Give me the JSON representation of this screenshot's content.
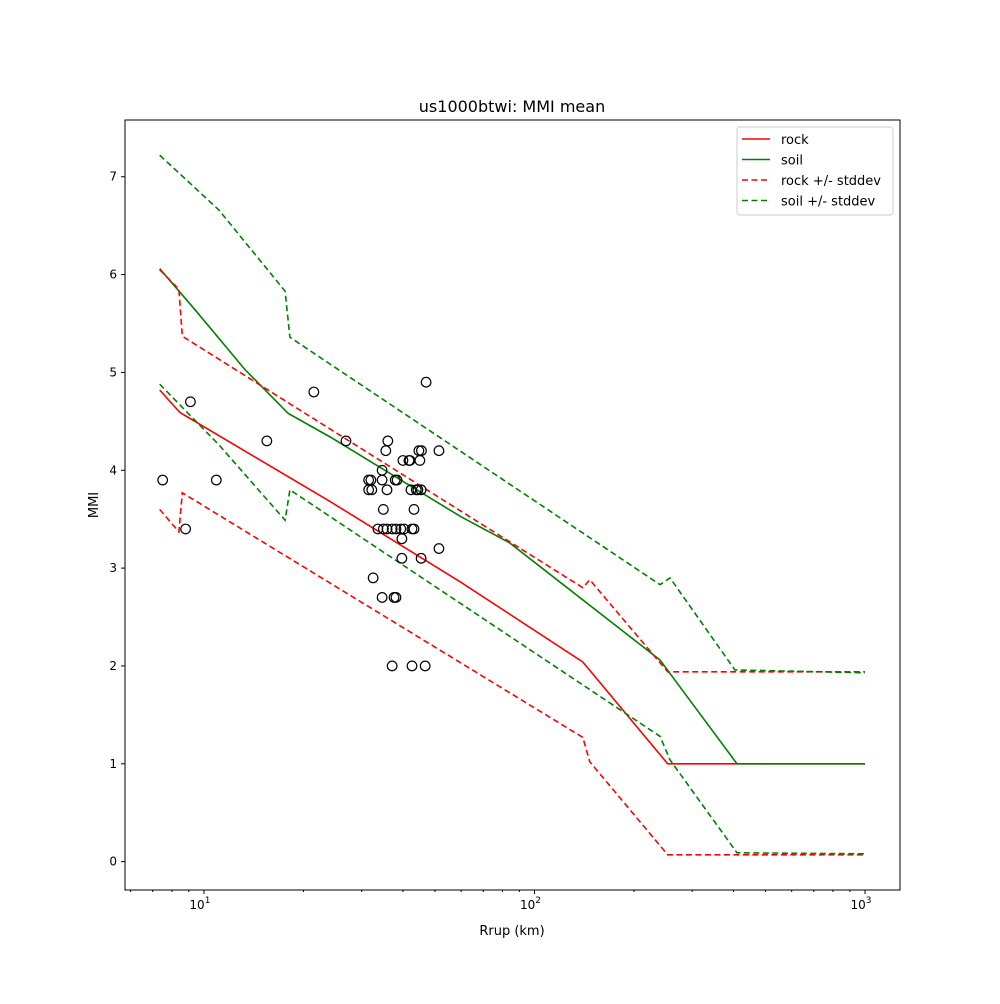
{
  "chart_data": {
    "type": "line",
    "title": "us1000btwi: MMI mean",
    "xlabel": "Rrup (km)",
    "ylabel": "MMI",
    "xscale": "log",
    "xlim": [
      5.77,
      1276
    ],
    "ylim": [
      -0.29,
      7.58
    ],
    "xticks": [
      {
        "v": 10,
        "base": "10",
        "exp": "1"
      },
      {
        "v": 100,
        "base": "10",
        "exp": "2"
      },
      {
        "v": 1000,
        "base": "10",
        "exp": "3"
      }
    ],
    "yticks": [
      "0",
      "1",
      "2",
      "3",
      "4",
      "5",
      "6",
      "7"
    ],
    "legend_position": "top-right",
    "series": [
      {
        "name": "rock",
        "color": "#ff0000",
        "style": "solid",
        "points": [
          [
            7.35,
            4.82
          ],
          [
            8.46,
            4.59
          ],
          [
            24.1,
            3.68
          ],
          [
            59.6,
            2.86
          ],
          [
            140,
            2.04
          ],
          [
            253,
            1.0
          ],
          [
            1000,
            1.0
          ]
        ]
      },
      {
        "name": "soil",
        "color": "#008000",
        "style": "solid",
        "points": [
          [
            7.35,
            6.06
          ],
          [
            9.4,
            5.64
          ],
          [
            13.3,
            5.03
          ],
          [
            18,
            4.58
          ],
          [
            24.1,
            4.34
          ],
          [
            59.6,
            3.53
          ],
          [
            84,
            3.26
          ],
          [
            240,
            2.06
          ],
          [
            295,
            1.65
          ],
          [
            410,
            1.0
          ],
          [
            1000,
            1.0
          ]
        ]
      },
      {
        "name": "rock +/- stddev",
        "color": "#ff0000",
        "style": "dashed",
        "points": [
          [
            7.35,
            6.05
          ],
          [
            8.4,
            5.85
          ],
          [
            8.6,
            5.37
          ],
          [
            140,
            2.8
          ],
          [
            147,
            2.88
          ],
          [
            253,
            1.94
          ],
          [
            1000,
            1.94
          ]
        ]
      },
      {
        "name": "rock +/- stddev (lower)",
        "legend": false,
        "color": "#ff0000",
        "style": "dashed",
        "points": [
          [
            7.35,
            3.6
          ],
          [
            8.4,
            3.37
          ],
          [
            8.6,
            3.77
          ],
          [
            140,
            1.27
          ],
          [
            147,
            1.02
          ],
          [
            253,
            0.07
          ],
          [
            1000,
            0.07
          ]
        ]
      },
      {
        "name": "soil +/- stddev",
        "color": "#008000",
        "style": "dashed",
        "points": [
          [
            7.35,
            7.22
          ],
          [
            11.1,
            6.66
          ],
          [
            17.6,
            5.83
          ],
          [
            18.2,
            5.36
          ],
          [
            240,
            2.83
          ],
          [
            257,
            2.9
          ],
          [
            404,
            1.96
          ],
          [
            1000,
            1.93
          ]
        ]
      },
      {
        "name": "soil +/- stddev (lower)",
        "legend": false,
        "color": "#008000",
        "style": "dashed",
        "points": [
          [
            7.35,
            4.88
          ],
          [
            11.1,
            4.26
          ],
          [
            17.6,
            3.49
          ],
          [
            18.2,
            3.8
          ],
          [
            240,
            1.28
          ],
          [
            257,
            1.04
          ],
          [
            410,
            0.09
          ],
          [
            1000,
            0.08
          ]
        ]
      }
    ],
    "legend": [
      "rock",
      "soil",
      "rock +/- stddev",
      "soil +/- stddev"
    ],
    "scatter": [
      [
        7.5,
        3.9
      ],
      [
        8.8,
        3.4
      ],
      [
        9.1,
        4.7
      ],
      [
        10.9,
        3.9
      ],
      [
        15.5,
        4.3
      ],
      [
        21.5,
        4.8
      ],
      [
        26.9,
        4.3
      ],
      [
        47,
        4.9
      ],
      [
        36,
        4.3
      ],
      [
        35.5,
        4.2
      ],
      [
        44.7,
        4.2
      ],
      [
        45.5,
        4.2
      ],
      [
        51.4,
        4.2
      ],
      [
        40,
        4.1
      ],
      [
        41.7,
        4.1
      ],
      [
        42,
        4.1
      ],
      [
        45,
        4.1
      ],
      [
        34.6,
        4.0
      ],
      [
        31.5,
        3.9
      ],
      [
        32,
        3.9
      ],
      [
        34.6,
        3.9
      ],
      [
        37.9,
        3.9
      ],
      [
        38.4,
        3.9
      ],
      [
        31.5,
        3.8
      ],
      [
        32.2,
        3.8
      ],
      [
        35.8,
        3.8
      ],
      [
        42.3,
        3.8
      ],
      [
        43.9,
        3.8
      ],
      [
        44.4,
        3.8
      ],
      [
        45.4,
        3.8
      ],
      [
        34.9,
        3.6
      ],
      [
        43.2,
        3.6
      ],
      [
        33.6,
        3.4
      ],
      [
        34.9,
        3.4
      ],
      [
        35.8,
        3.4
      ],
      [
        37.1,
        3.4
      ],
      [
        38.1,
        3.4
      ],
      [
        39.4,
        3.4
      ],
      [
        40.3,
        3.4
      ],
      [
        42.6,
        3.4
      ],
      [
        43.2,
        3.4
      ],
      [
        39.7,
        3.3
      ],
      [
        51.4,
        3.2
      ],
      [
        39.7,
        3.1
      ],
      [
        45.4,
        3.1
      ],
      [
        32.5,
        2.9
      ],
      [
        34.6,
        2.7
      ],
      [
        37.6,
        2.7
      ],
      [
        38.1,
        2.7
      ],
      [
        37.1,
        2.0
      ],
      [
        42.6,
        2.0
      ],
      [
        46.7,
        2.0
      ]
    ]
  }
}
